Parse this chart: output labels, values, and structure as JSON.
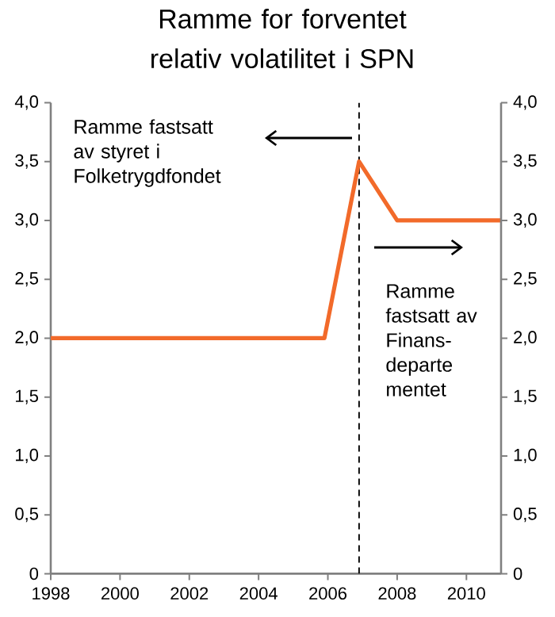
{
  "chart_data": {
    "type": "line",
    "title": "Ramme for forventet relativ volatilitet i SPN",
    "x": [
      1998,
      2005.9,
      2006.9,
      2008,
      2011
    ],
    "series": [
      {
        "color": "#f26a2a",
        "values": [
          2.0,
          2.0,
          3.5,
          3.0,
          3.0
        ]
      }
    ],
    "xlim": [
      1998,
      2011
    ],
    "xticks": [
      1998,
      2000,
      2002,
      2004,
      2006,
      2008,
      2010
    ],
    "ylim": [
      0,
      4
    ],
    "yticks": [
      {
        "value": 0,
        "label": "0"
      },
      {
        "value": 0.5,
        "label": "0,5"
      },
      {
        "value": 1,
        "label": "1,0"
      },
      {
        "value": 1.5,
        "label": "1,5"
      },
      {
        "value": 2,
        "label": "2,0"
      },
      {
        "value": 2.5,
        "label": "2,5"
      },
      {
        "value": 3,
        "label": "3,0"
      },
      {
        "value": 3.5,
        "label": "3,5"
      },
      {
        "value": 4,
        "label": "4,0"
      }
    ],
    "y2lim": [
      0,
      4
    ],
    "y2ticks": [
      {
        "value": 0,
        "label": "0"
      },
      {
        "value": 0.5,
        "label": "0,5"
      },
      {
        "value": 1,
        "label": "1,0"
      },
      {
        "value": 1.5,
        "label": "1,5"
      },
      {
        "value": 2,
        "label": "2,0"
      },
      {
        "value": 2.5,
        "label": "2,5"
      },
      {
        "value": 3,
        "label": "3,0"
      },
      {
        "value": 3.5,
        "label": "3,5"
      },
      {
        "value": 4,
        "label": "4,0"
      }
    ],
    "ref_lines": [
      {
        "axis": "x",
        "value": 2006.9,
        "color": "#000000",
        "line_style": "dashed"
      }
    ],
    "grid": false,
    "marker": "none",
    "line_style": "solid",
    "annotations": [
      "Ramme fastsatt av styret i Folketrygdfondet",
      "Ramme fastsatt av Finans-departe mentet"
    ]
  }
}
